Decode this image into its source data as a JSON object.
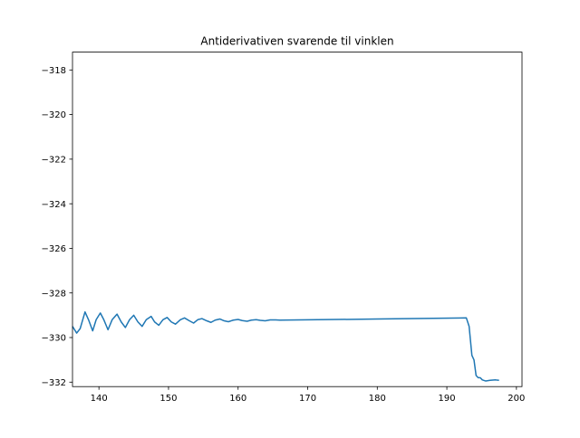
{
  "chart_data": {
    "type": "line",
    "title": "Antiderivativen svarende til vinklen",
    "xlabel": "",
    "ylabel": "",
    "xlim": [
      136.2,
      200.8
    ],
    "ylim": [
      -332.2,
      -317.2
    ],
    "x_ticks": [
      140,
      150,
      160,
      170,
      180,
      190,
      200
    ],
    "y_ticks": [
      -318,
      -320,
      -322,
      -324,
      -326,
      -328,
      -330,
      -332
    ],
    "x_tick_labels": [
      "140",
      "150",
      "160",
      "170",
      "180",
      "190",
      "200"
    ],
    "y_tick_labels": [
      "−318",
      "−320",
      "−322",
      "−324",
      "−326",
      "−328",
      "−330",
      "−332"
    ],
    "grid": false,
    "legend": "none",
    "series": [
      {
        "color": "#1f77b4",
        "x": [
          136.2,
          136.8,
          137.3,
          138.0,
          138.5,
          139.1,
          139.6,
          140.2,
          140.7,
          141.3,
          141.9,
          142.6,
          143.2,
          143.8,
          144.4,
          145.0,
          145.6,
          146.2,
          146.8,
          147.5,
          148.0,
          148.6,
          149.2,
          149.8,
          150.4,
          151.0,
          151.7,
          152.3,
          153.0,
          153.6,
          154.2,
          154.8,
          155.5,
          156.1,
          156.7,
          157.4,
          158.0,
          158.6,
          159.3,
          160.0,
          160.6,
          161.3,
          161.9,
          162.6,
          163.2,
          163.9,
          164.6,
          165.4,
          166.0,
          180.0,
          192.8,
          193.2,
          193.6,
          193.9,
          194.2,
          194.5,
          194.8,
          195.1,
          195.6,
          196.2,
          197.0,
          197.5
        ],
        "y": [
          -329.5,
          -329.8,
          -329.6,
          -328.85,
          -329.2,
          -329.7,
          -329.2,
          -328.9,
          -329.2,
          -329.65,
          -329.2,
          -328.95,
          -329.3,
          -329.55,
          -329.2,
          -329.0,
          -329.3,
          -329.5,
          -329.2,
          -329.05,
          -329.3,
          -329.45,
          -329.2,
          -329.1,
          -329.3,
          -329.4,
          -329.2,
          -329.12,
          -329.25,
          -329.35,
          -329.2,
          -329.15,
          -329.25,
          -329.32,
          -329.22,
          -329.17,
          -329.25,
          -329.29,
          -329.22,
          -329.19,
          -329.24,
          -329.27,
          -329.22,
          -329.2,
          -329.23,
          -329.25,
          -329.21,
          -329.21,
          -329.22,
          -329.17,
          -329.12,
          -329.5,
          -330.8,
          -331.0,
          -331.7,
          -331.8,
          -331.8,
          -331.9,
          -331.95,
          -331.92,
          -331.9,
          -331.92
        ]
      }
    ]
  }
}
